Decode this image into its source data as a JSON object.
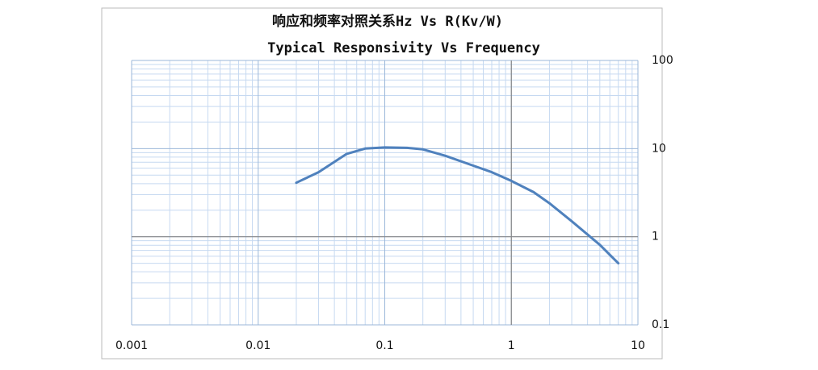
{
  "chart_data": {
    "type": "line",
    "title": "响应和频率对照关系Hz Vs R(Kv/W)",
    "subtitle": "Typical Responsivity Vs Frequency",
    "x": [
      0.02,
      0.03,
      0.05,
      0.07,
      0.1,
      0.15,
      0.2,
      0.3,
      0.5,
      0.7,
      1,
      1.5,
      2,
      3,
      5,
      7
    ],
    "series": [
      {
        "color": "#4f81bd",
        "values": [
          4.1,
          5.4,
          8.7,
          10,
          10.3,
          10.2,
          9.8,
          8.3,
          6.4,
          5.4,
          4.3,
          3.2,
          2.4,
          1.5,
          0.81,
          0.5
        ]
      }
    ],
    "xlim": [
      0.001,
      10
    ],
    "xticks": [
      0.001,
      0.01,
      0.1,
      1,
      10
    ],
    "ylim": [
      0.1,
      100
    ],
    "yticks": [
      0.1,
      1,
      10,
      100
    ],
    "xscale": "log",
    "yscale": "log",
    "grid": true,
    "minor_grid": true
  }
}
